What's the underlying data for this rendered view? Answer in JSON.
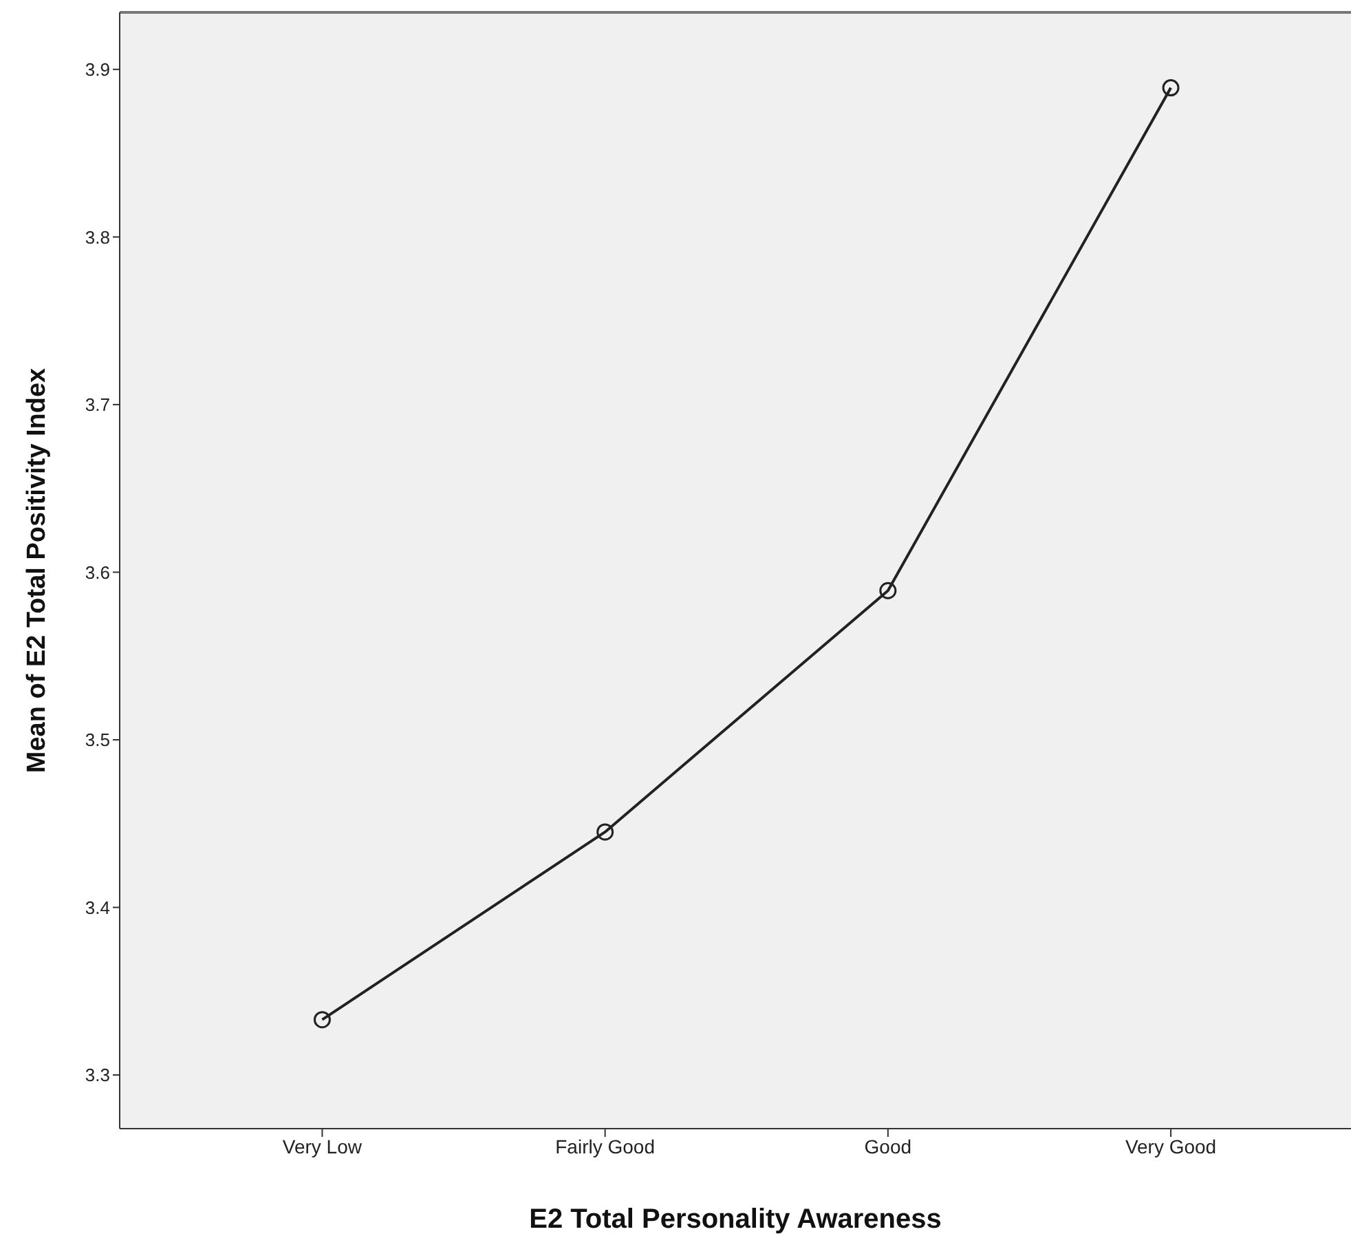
{
  "chart_data": {
    "type": "line",
    "xlabel": "E2 Total Personality Awareness",
    "ylabel": "Mean of E2 Total Positivity Index",
    "categories": [
      "Very Low",
      "Fairly Good",
      "Good",
      "Very Good"
    ],
    "series": [
      {
        "color": "#222222",
        "values": [
          3.333,
          3.445,
          3.589,
          3.889
        ]
      }
    ],
    "ylim": [
      3.268,
      3.934
    ],
    "yticks": [
      3.3,
      3.4,
      3.5,
      3.6,
      3.7,
      3.8,
      3.9
    ],
    "marker": "circle",
    "line_style": "solid",
    "grid": false
  }
}
